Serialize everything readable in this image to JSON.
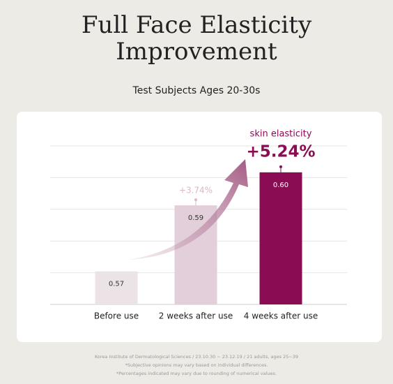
{
  "chart_data": {
    "type": "bar",
    "title": [
      "Full Face Elasticity",
      "Improvement"
    ],
    "subtitle": "Test Subjects Ages 20-30s",
    "categories": [
      "Before use",
      "2 weeks after use",
      "4 weeks after use"
    ],
    "values": [
      0.57,
      0.59,
      0.6
    ],
    "value_labels": [
      "0.57",
      "0.59",
      "0.60"
    ],
    "colors": [
      "#ebe3e6",
      "#e2cfd9",
      "#8a0c52"
    ],
    "ylim": [
      0.56,
      0.608
    ],
    "annotations": {
      "series_label": "skin elasticity",
      "increase_2w": "+3.74%",
      "increase_4w": "+5.24%"
    },
    "footnotes": [
      "Korea Institute of Dermatological Sciences / 23.10.30 ~ 23.12.19 / 21 adults, ages 25~39",
      "*Subjective opinions may vary based on individual differences.",
      "*Percentages indicated may vary due to rounding of numerical values."
    ]
  }
}
